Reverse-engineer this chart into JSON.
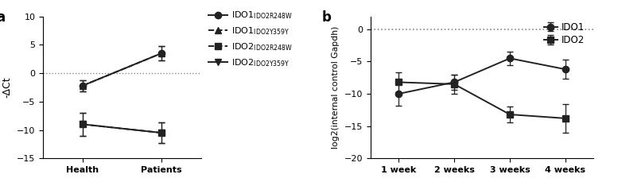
{
  "panel_a": {
    "title_label": "a",
    "xlabel_categories": [
      "Health",
      "Patients"
    ],
    "ylabel": "-ΔCt",
    "ylim": [
      -15,
      10
    ],
    "yticks": [
      -15,
      -10,
      -5,
      0,
      5,
      10
    ],
    "hline_y": 0,
    "series": [
      {
        "label_main": "IDO1",
        "label_sub": "IDO2R248W",
        "x": [
          0,
          1
        ],
        "y": [
          -2.2,
          3.5
        ],
        "yerr": [
          1.0,
          1.2
        ],
        "marker": "o",
        "linestyle": "-",
        "color": "#222222",
        "markersize": 6,
        "linewidth": 1.4
      },
      {
        "label_main": "IDO1",
        "label_sub": "IDO2Y359Y",
        "x": [
          0,
          1
        ],
        "y": [
          -2.2,
          3.5
        ],
        "yerr": [
          1.0,
          1.2
        ],
        "marker": "^",
        "linestyle": "--",
        "color": "#222222",
        "markersize": 6,
        "linewidth": 1.4
      },
      {
        "label_main": "IDO2",
        "label_sub": "IDO2R248W",
        "x": [
          0,
          1
        ],
        "y": [
          -9.0,
          -10.5
        ],
        "yerr": [
          2.0,
          1.8
        ],
        "marker": "s",
        "linestyle": "--",
        "color": "#222222",
        "markersize": 6,
        "linewidth": 1.4
      },
      {
        "label_main": "IDO2",
        "label_sub": "IDO2Y359Y",
        "x": [
          0,
          1
        ],
        "y": [
          -9.0,
          -10.5
        ],
        "yerr": [
          2.0,
          1.8
        ],
        "marker": "v",
        "linestyle": "-",
        "color": "#222222",
        "markersize": 6,
        "linewidth": 1.4
      }
    ],
    "legend_items": [
      {
        "main": "IDO1",
        "sub": "IDO2R248W",
        "marker": "o",
        "linestyle": "-"
      },
      {
        "main": "IDO1",
        "sub": "IDO2Y359Y",
        "marker": "^",
        "linestyle": "--"
      },
      {
        "main": "IDO2",
        "sub": "IDO2R248W",
        "marker": "s",
        "linestyle": "--"
      },
      {
        "main": "IDO2",
        "sub": "IDO2Y359Y",
        "marker": "v",
        "linestyle": "-"
      }
    ]
  },
  "panel_b": {
    "title_label": "b",
    "xlabel_categories": [
      "1 week",
      "2 weeks",
      "3 weeks",
      "4 weeks"
    ],
    "ylabel": "log2(internal control Gapdh)",
    "ylim": [
      -20,
      2
    ],
    "yticks": [
      -20,
      -15,
      -10,
      -5,
      0
    ],
    "hline_y": 0,
    "series": [
      {
        "label": "IDO1",
        "x": [
          0,
          1,
          2,
          3
        ],
        "y": [
          -10.0,
          -8.2,
          -4.5,
          -6.2
        ],
        "yerr": [
          1.8,
          1.2,
          1.0,
          1.5
        ],
        "marker": "o",
        "linestyle": "-",
        "color": "#222222",
        "markersize": 6,
        "linewidth": 1.4
      },
      {
        "label": "IDO2",
        "x": [
          0,
          1,
          2,
          3
        ],
        "y": [
          -8.2,
          -8.5,
          -13.2,
          -13.8
        ],
        "yerr": [
          1.5,
          1.5,
          1.2,
          2.2
        ],
        "marker": "s",
        "linestyle": "-",
        "color": "#222222",
        "markersize": 6,
        "linewidth": 1.4
      }
    ]
  },
  "background_color": "#ffffff",
  "line_color": "#222222",
  "hline_color": "#888888"
}
